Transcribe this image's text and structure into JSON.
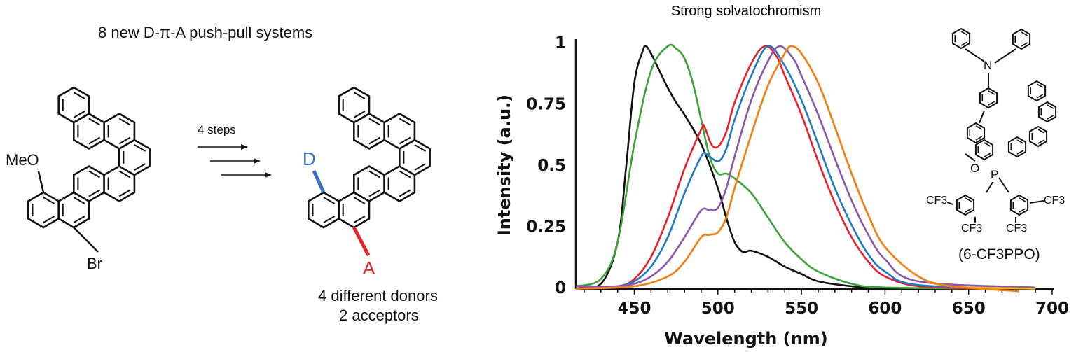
{
  "scheme": {
    "heading": "8 new D-π-A push-pull systems",
    "start_substituent_top": "MeO",
    "start_substituent_bottom": "Br",
    "arrow_label": "4 steps",
    "product_donor": "D",
    "product_acceptor": "A",
    "caption_line1": "4 different donors",
    "caption_line2": "2 acceptors",
    "donor_color": "#3a6fc4",
    "acceptor_color": "#e8262b"
  },
  "compound": {
    "atom_n": "N",
    "atom_o": "O",
    "atom_p": "P",
    "cf3_labels": [
      "CF3",
      "CF3",
      "CF3",
      "CF3"
    ],
    "name": "(6-CF3PPO)"
  },
  "chart_data": {
    "type": "line",
    "title": "Strong solvatochromism",
    "xlabel": "Wavelength (nm)",
    "ylabel": "Intensity (a.u.)",
    "xlim": [
      415,
      700
    ],
    "ylim": [
      0,
      1
    ],
    "xticks": [
      450,
      500,
      550,
      600,
      650,
      700
    ],
    "yticks": [
      0,
      0.25,
      0.5,
      0.75,
      1
    ],
    "ytick_labels": [
      "0",
      "0.25",
      "0.5",
      "0.75",
      "1"
    ],
    "grid": false,
    "series": [
      {
        "color": "#111111",
        "x": [
          415,
          430,
          440,
          445,
          450,
          455,
          457,
          460,
          465,
          470,
          475,
          480,
          490,
          500,
          505,
          510,
          515,
          520,
          530,
          540,
          550,
          560,
          580,
          600,
          660
        ],
        "y": [
          0.02,
          0.03,
          0.2,
          0.5,
          0.85,
          0.98,
          1.0,
          0.97,
          0.9,
          0.83,
          0.77,
          0.72,
          0.6,
          0.42,
          0.3,
          0.2,
          0.16,
          0.165,
          0.14,
          0.1,
          0.07,
          0.04,
          0.02,
          0.01,
          0.01
        ]
      },
      {
        "color": "#3aa335",
        "x": [
          415,
          430,
          440,
          450,
          460,
          470,
          475,
          480,
          485,
          490,
          495,
          500,
          505,
          510,
          520,
          530,
          540,
          550,
          560,
          580,
          600,
          660
        ],
        "y": [
          0.02,
          0.05,
          0.2,
          0.6,
          0.9,
          1.0,
          0.99,
          0.95,
          0.85,
          0.7,
          0.55,
          0.48,
          0.48,
          0.46,
          0.4,
          0.3,
          0.2,
          0.13,
          0.08,
          0.03,
          0.015,
          0.01
        ]
      },
      {
        "color": "#e8202a",
        "x": [
          415,
          440,
          450,
          460,
          470,
          480,
          490,
          492,
          496,
          500,
          505,
          510,
          520,
          528,
          535,
          540,
          550,
          560,
          570,
          580,
          590,
          600,
          620,
          660
        ],
        "y": [
          0.01,
          0.02,
          0.05,
          0.14,
          0.3,
          0.5,
          0.66,
          0.67,
          0.6,
          0.59,
          0.65,
          0.77,
          0.93,
          1.0,
          0.96,
          0.88,
          0.72,
          0.53,
          0.36,
          0.22,
          0.12,
          0.06,
          0.02,
          0.01
        ]
      },
      {
        "color": "#1f78c8",
        "x": [
          415,
          440,
          450,
          460,
          470,
          480,
          490,
          493,
          500,
          505,
          510,
          520,
          530,
          540,
          550,
          560,
          570,
          580,
          590,
          600,
          620,
          690
        ],
        "y": [
          0.01,
          0.02,
          0.04,
          0.1,
          0.22,
          0.4,
          0.55,
          0.56,
          0.53,
          0.58,
          0.7,
          0.88,
          1.0,
          0.92,
          0.78,
          0.6,
          0.42,
          0.27,
          0.15,
          0.08,
          0.025,
          0.01
        ]
      },
      {
        "color": "#8a55b0",
        "x": [
          415,
          440,
          450,
          460,
          470,
          480,
          490,
          495,
          500,
          505,
          510,
          520,
          530,
          537,
          545,
          550,
          560,
          570,
          580,
          590,
          600,
          620,
          690
        ],
        "y": [
          0.02,
          0.02,
          0.03,
          0.06,
          0.12,
          0.22,
          0.33,
          0.33,
          0.34,
          0.42,
          0.55,
          0.78,
          0.94,
          1.0,
          0.95,
          0.88,
          0.72,
          0.54,
          0.37,
          0.23,
          0.13,
          0.04,
          0.015
        ]
      },
      {
        "color": "#f7b500",
        "x": [
          415,
          450,
          470,
          480,
          490,
          495,
          500,
          505,
          510,
          520,
          530,
          540,
          544,
          550,
          560,
          570,
          580,
          590,
          600,
          620,
          640,
          690
        ],
        "y": [
          0.01,
          0.02,
          0.06,
          0.12,
          0.22,
          0.23,
          0.24,
          0.3,
          0.42,
          0.64,
          0.84,
          0.97,
          1.0,
          0.97,
          0.85,
          0.67,
          0.48,
          0.31,
          0.18,
          0.06,
          0.02,
          0.01
        ]
      },
      {
        "color": "#f07f1b",
        "x": [
          415,
          450,
          470,
          480,
          490,
          495,
          500,
          505,
          510,
          520,
          530,
          540,
          544,
          550,
          560,
          570,
          580,
          590,
          600,
          620,
          640,
          680
        ],
        "y": [
          0.01,
          0.02,
          0.06,
          0.12,
          0.22,
          0.23,
          0.24,
          0.3,
          0.42,
          0.64,
          0.84,
          0.97,
          1.0,
          0.97,
          0.85,
          0.67,
          0.48,
          0.31,
          0.18,
          0.06,
          0.02,
          0.0
        ]
      }
    ]
  }
}
